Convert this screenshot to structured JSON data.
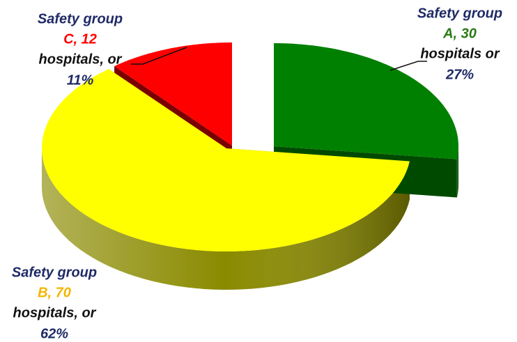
{
  "chart_data": {
    "type": "pie",
    "group_labels": [
      "Safety group",
      "Safety group",
      "Safety group"
    ],
    "categories": [
      "A, 30",
      "B, 70",
      "C, 12"
    ],
    "connectors": [
      "hospitals or",
      "hospitals, or",
      "hospitals, or"
    ],
    "values": [
      27,
      62,
      11
    ],
    "value_labels": [
      "27%",
      "62%",
      "11%"
    ],
    "colors": [
      "#008000",
      "#ffff00",
      "#ff0000"
    ],
    "side_colors": [
      "#004a00",
      "#8a8a00",
      "#7a0000"
    ],
    "category_label_colors": [
      "#2a7a14",
      "#f2b600",
      "#ff0000"
    ],
    "label_color": "#1f2a66",
    "connector_color": "#111111"
  }
}
